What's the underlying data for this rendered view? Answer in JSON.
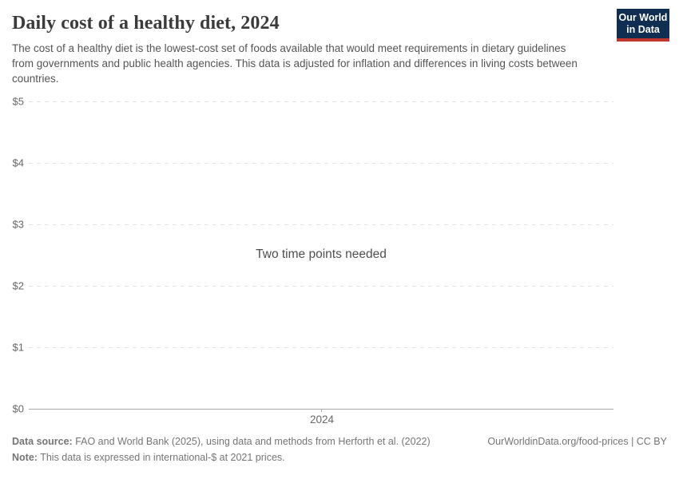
{
  "header": {
    "title": "Daily cost of a healthy diet, 2024",
    "subtitle": "The cost of a healthy diet is the lowest-cost set of foods available that would meet requirements in dietary guidelines from governments and public health agencies. This data is adjusted for inflation and differences in living costs between countries.",
    "logo": {
      "line1": "Our World",
      "line2": "in Data"
    }
  },
  "chart_data": {
    "type": "line",
    "title": "Daily cost of a healthy diet, 2024",
    "x": [
      2024
    ],
    "xticks": [
      "2024"
    ],
    "series": [],
    "empty_message": "Two time points needed",
    "yticks": [
      "$0",
      "$1",
      "$2",
      "$3",
      "$4",
      "$5"
    ],
    "ylim": [
      0,
      5
    ],
    "ytick_prefix": "$",
    "grid": true,
    "legend": "none"
  },
  "footer": {
    "source_label": "Data source:",
    "source_text": " FAO and World Bank (2025), using data and methods from Herforth et al. (2022)",
    "note_label": "Note:",
    "note_text": " This data is expressed in international-$ at 2021 prices.",
    "citation": "OurWorldinData.org/food-prices | CC BY"
  },
  "colors": {
    "title": "#3b3b3b",
    "subtitle": "#555555",
    "axis_label": "#676767",
    "gridline": "#e2e2e2",
    "zero_line": "#a8a8a8",
    "message": "#4f4f4f",
    "footer": "#757575",
    "logo_bg": "#0f2e51",
    "logo_stripe": "#c0362e"
  }
}
